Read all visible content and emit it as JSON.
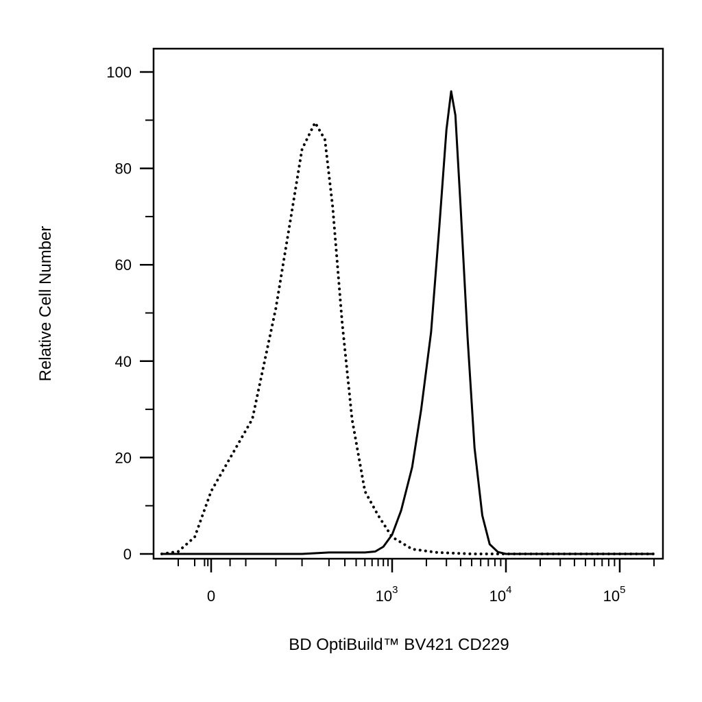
{
  "chart_data": {
    "type": "line",
    "title": "",
    "xlabel": "BD OptiBuild™ BV421 CD229",
    "ylabel": "Relative Cell Number",
    "x_scale": "biexponential",
    "ylim": [
      0,
      100
    ],
    "xlim": [
      -150,
      200000
    ],
    "grid": false,
    "legend": "none",
    "y_ticks": [
      "0",
      "20",
      "40",
      "60",
      "80",
      "100"
    ],
    "x_ticks": [
      {
        "base": "0",
        "exp": ""
      },
      {
        "base": "10",
        "exp": "3"
      },
      {
        "base": "10",
        "exp": "4"
      },
      {
        "base": "10",
        "exp": "5"
      }
    ],
    "series": [
      {
        "style": "dotted",
        "x": [
          -150,
          -100,
          -50,
          0,
          25,
          50,
          75,
          100,
          140,
          180,
          220,
          280,
          360,
          500,
          700,
          1000,
          1500,
          2500,
          5000,
          10000,
          50000,
          200000
        ],
        "y": [
          0,
          0.5,
          3.5,
          13,
          28,
          51,
          70,
          84,
          89.5,
          86,
          72,
          48,
          28,
          13,
          8,
          3.5,
          1,
          0.3,
          0,
          0,
          0,
          0
        ]
      },
      {
        "style": "solid",
        "x": [
          -150,
          100,
          200,
          500,
          650,
          800,
          1000,
          1200,
          1500,
          1800,
          2200,
          2600,
          3000,
          3300,
          3600,
          4000,
          4600,
          5300,
          6200,
          7200,
          8500,
          10000,
          20000,
          200000
        ],
        "y": [
          0,
          0,
          0.3,
          0.3,
          0.5,
          1.5,
          4,
          9,
          18,
          30,
          46,
          68,
          88,
          96,
          91,
          72,
          45,
          22,
          8,
          2,
          0.4,
          0,
          0,
          0
        ]
      }
    ]
  }
}
